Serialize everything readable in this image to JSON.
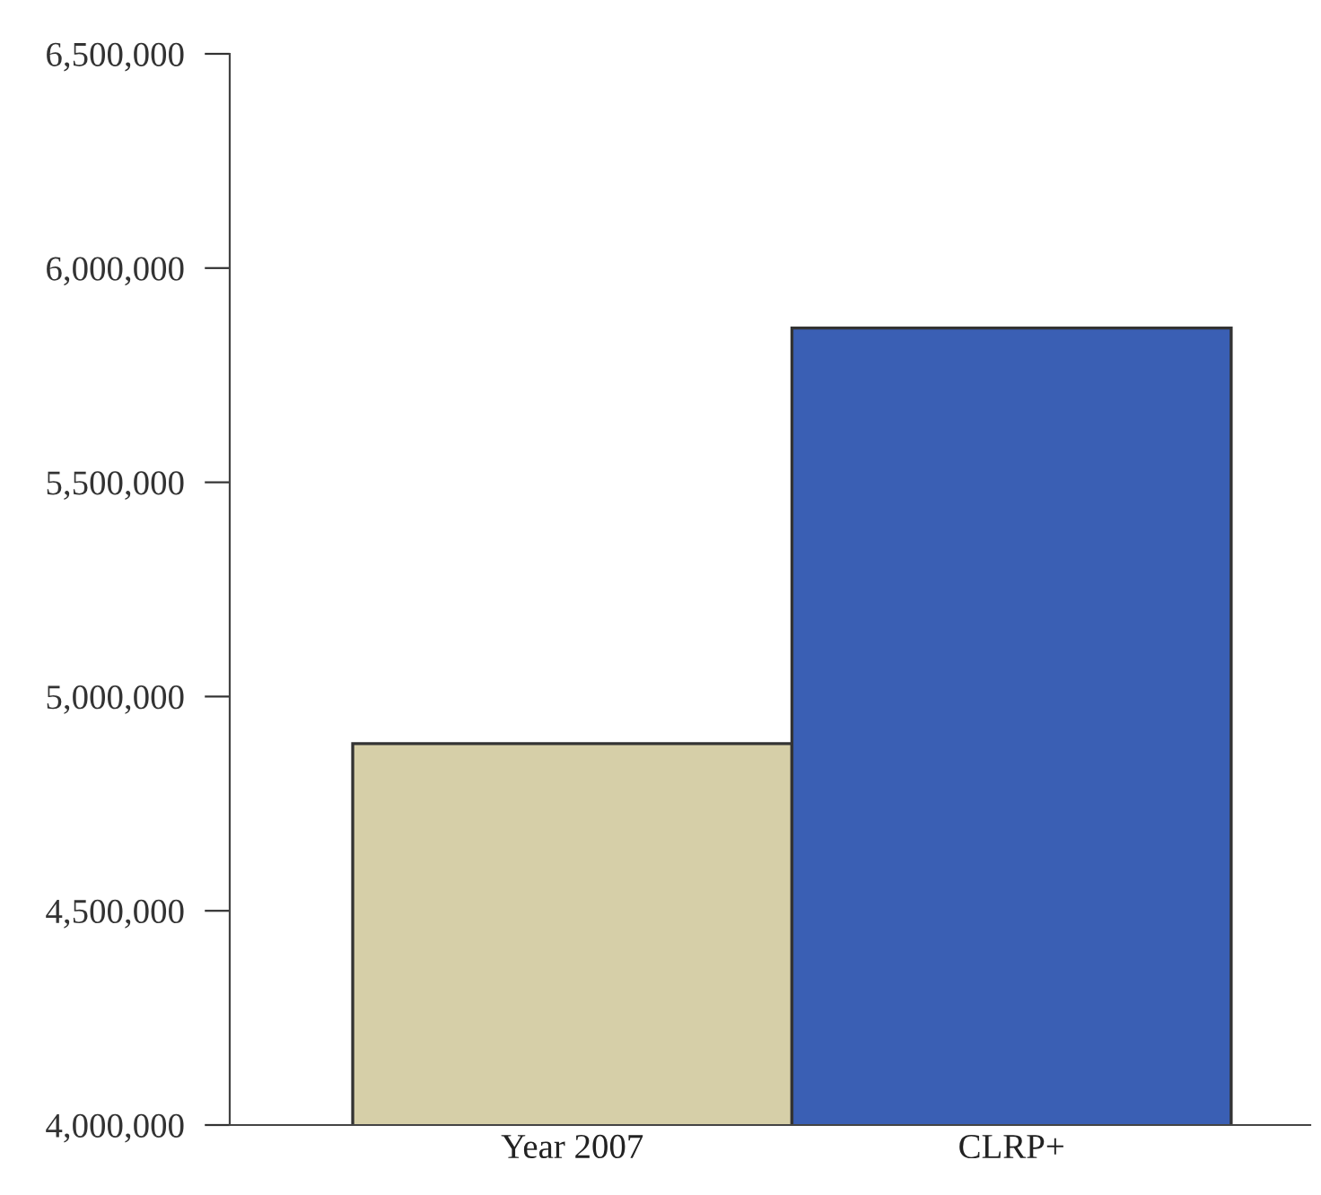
{
  "chart_data": {
    "type": "bar",
    "categories": [
      "Year 2007",
      "CLRP+"
    ],
    "values": [
      4890000,
      5860000
    ],
    "colors": [
      "#d6cfa8",
      "#3a5fb4"
    ],
    "ylim": [
      4000000,
      6500000
    ],
    "yticks": [
      {
        "value": 4000000,
        "label": "4,000,000"
      },
      {
        "value": 4500000,
        "label": "4,500,000"
      },
      {
        "value": 5000000,
        "label": "5,000,000"
      },
      {
        "value": 5500000,
        "label": "5,500,000"
      },
      {
        "value": 6000000,
        "label": "6,000,000"
      },
      {
        "value": 6500000,
        "label": "6,500,000"
      }
    ],
    "grid": false
  }
}
